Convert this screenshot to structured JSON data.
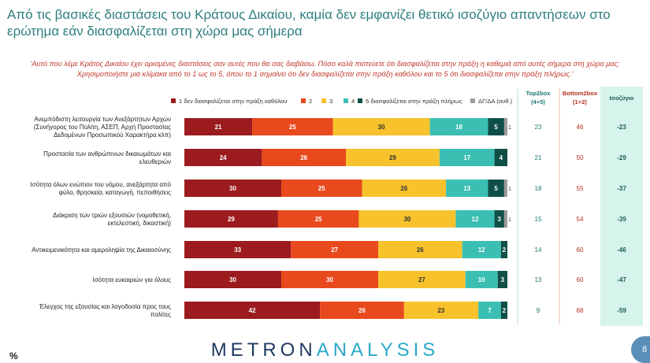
{
  "title_lines": [
    "Από τις βασικές διαστάσεις του Κράτους Δικαίου, καμία δεν εμφανίζει θετικό ισοζύγιο απαντήσεων στο",
    "ερώτημα εάν διασφαλίζεται στη χώρα μας σήμερα"
  ],
  "question_lines": [
    "'Αυτό που λέμε Κράτος Δικαίου έχει ορισμένες διαστάσεις σαν αυτές που θα σας διαβάσω. Πόσο καλά πιστεύετε ότι διασφαλίζεται στην πράξη η καθεμιά από αυτές σήμερα στη χώρα μας;",
    "Χρησιμοποιήστε μια κλίμακα από το 1 ως το 5, όπου το 1 σημαίνει ότι δεν διασφαλίζεται στην πράξη καθόλου και το 5 ότι διασφαλίζεται στην πράξη πλήρως.'"
  ],
  "footer": {
    "logo_a": "METRON",
    "logo_b": "ANALYSIS",
    "pct": "%",
    "page": "8"
  },
  "colors": {
    "c1": "#9b1b1e",
    "c2": "#e8491d",
    "c3": "#f7c22b",
    "c4": "#3bbfb3",
    "c5": "#0f4f47",
    "c6": "#9c9c9c",
    "title": "#2d7f7d",
    "isozygio_bg": "#d6f3ec"
  },
  "chart_data": {
    "type": "bar",
    "orientation": "horizontal",
    "stacked": true,
    "xlim": [
      0,
      100
    ],
    "legend_position": "top",
    "legend": [
      "1  δεν διασφαλίζεται στην πράξη καθόλου",
      "2",
      "3",
      "4",
      "5 διασφαλίζεται στην πράξη πλήρως",
      "ΔΓ/ΔΑ (αυθ.)"
    ],
    "categories": [
      [
        "Ανεμπόδιστη λειτουργία των Ανεξάρτητων Αρχών",
        "(Συνήγορος του Πολίτη, ΑΣΕΠ, Αρχή Προστασίας",
        "Δεδομένων Προσωπικού Χαρακτήρα κλπ)"
      ],
      [
        "Προστασία των ανθρώπινων δικαιωμάτων και",
        "ελευθεριών"
      ],
      [
        "Ισότητα όλων ενώπιον του νόμου, ανεξάρτητα από",
        "φύλο, θρησκεία, καταγωγή, πεποιθήσεις"
      ],
      [
        "Διάκριση των τριών εξουσιών (νομοθετική,",
        "εκτελεστική, δικαστική)"
      ],
      [
        "Αντικειμενικότητα και αμεροληψία της Δικαιοσύνης"
      ],
      [
        "Ισότητα ευκαιριών για όλους"
      ],
      [
        "Έλεγχος της εξουσίας και λογοδοσία προς τους",
        "πολίτες"
      ]
    ],
    "series": [
      {
        "name": "1  δεν διασφαλίζεται στην πράξη καθόλου",
        "values": [
          21,
          24,
          30,
          29,
          33,
          30,
          42
        ]
      },
      {
        "name": "2",
        "values": [
          25,
          26,
          25,
          25,
          27,
          30,
          26
        ]
      },
      {
        "name": "3",
        "values": [
          30,
          29,
          26,
          30,
          26,
          27,
          23
        ]
      },
      {
        "name": "4",
        "values": [
          18,
          17,
          13,
          12,
          12,
          10,
          7
        ]
      },
      {
        "name": "5 διασφαλίζεται στην πράξη πλήρως",
        "values": [
          5,
          4,
          5,
          3,
          2,
          3,
          2
        ]
      },
      {
        "name": "ΔΓ/ΔΑ (αυθ.)",
        "values": [
          1,
          0,
          1,
          1,
          0,
          0,
          0
        ]
      }
    ],
    "columns": {
      "top2box": {
        "header": [
          "Top2box",
          "(4+5)"
        ],
        "values": [
          23,
          21,
          18,
          15,
          14,
          13,
          9
        ]
      },
      "bottom2box": {
        "header": [
          "Bottom2box",
          "(1+2)"
        ],
        "values": [
          46,
          50,
          55,
          54,
          60,
          60,
          68
        ]
      },
      "isozygio": {
        "header": [
          "Ισοζύγιο"
        ],
        "values": [
          "-23",
          "-29",
          "-37",
          "-39",
          "-46",
          "-47",
          "-59"
        ]
      }
    }
  }
}
